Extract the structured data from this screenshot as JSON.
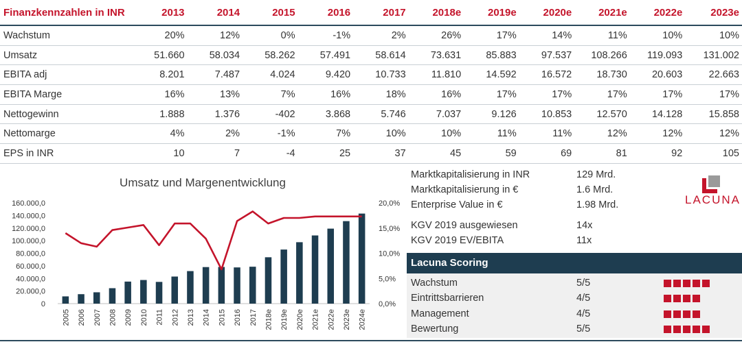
{
  "table": {
    "headers": [
      "Finanzkennzahlen in INR",
      "2013",
      "2014",
      "2015",
      "2016",
      "2017",
      "2018e",
      "2019e",
      "2020e",
      "2021e",
      "2022e",
      "2023e"
    ],
    "rows": [
      [
        "Wachstum",
        "20%",
        "12%",
        "0%",
        "-1%",
        "2%",
        "26%",
        "17%",
        "14%",
        "11%",
        "10%",
        "10%"
      ],
      [
        "Umsatz",
        "51.660",
        "58.034",
        "58.262",
        "57.491",
        "58.614",
        "73.631",
        "85.883",
        "97.537",
        "108.266",
        "119.093",
        "131.002"
      ],
      [
        "EBITA adj",
        "8.201",
        "7.487",
        "4.024",
        "9.420",
        "10.733",
        "11.810",
        "14.592",
        "16.572",
        "18.730",
        "20.603",
        "22.663"
      ],
      [
        "EBITA Marge",
        "16%",
        "13%",
        "7%",
        "16%",
        "18%",
        "16%",
        "17%",
        "17%",
        "17%",
        "17%",
        "17%"
      ],
      [
        "Nettogewinn",
        "1.888",
        "1.376",
        "-402",
        "3.868",
        "5.746",
        "7.037",
        "9.126",
        "10.853",
        "12.570",
        "14.128",
        "15.858"
      ],
      [
        "Nettomarge",
        "4%",
        "2%",
        "-1%",
        "7%",
        "10%",
        "10%",
        "11%",
        "11%",
        "12%",
        "12%",
        "12%"
      ],
      [
        "EPS in INR",
        "10",
        "7",
        "-4",
        "25",
        "37",
        "45",
        "59",
        "69",
        "81",
        "92",
        "105"
      ]
    ]
  },
  "chart_data": {
    "type": "bar",
    "title": "Umsatz und Margenentwicklung",
    "categories": [
      "2005",
      "2006",
      "2007",
      "2008",
      "2009",
      "2010",
      "2011",
      "2012",
      "2013",
      "2014",
      "2015",
      "2016",
      "2017",
      "2018e",
      "2019e",
      "2020e",
      "2021e",
      "2022e",
      "2023e",
      "2024e"
    ],
    "series": [
      {
        "type": "bar",
        "axis": "left",
        "color": "#1e3d50",
        "values": [
          11500,
          15000,
          18000,
          24500,
          35000,
          37500,
          34500,
          43000,
          51660,
          58034,
          58262,
          57491,
          58614,
          73631,
          85883,
          97537,
          108266,
          119093,
          131002,
          143000
        ]
      },
      {
        "type": "line",
        "axis": "right",
        "color": "#c4142b",
        "values": [
          14.0,
          12.0,
          11.3,
          14.6,
          15.1,
          15.6,
          11.6,
          15.9,
          15.9,
          12.9,
          6.8,
          16.4,
          18.3,
          15.9,
          17.0,
          17.0,
          17.3,
          17.3,
          17.3,
          17.3
        ]
      }
    ],
    "y_left": {
      "min": 0,
      "max": 160000,
      "ticks": [
        "0",
        "20.000,0",
        "40.000,0",
        "60.000,0",
        "80.000,0",
        "100.000,0",
        "120.000,0",
        "140.000,0",
        "160.000,0"
      ]
    },
    "y_right": {
      "min": 0,
      "max": 20,
      "ticks": [
        "0,0%",
        "5,0%",
        "10,0%",
        "15,0%",
        "20,0%"
      ]
    },
    "grid": false,
    "legend": "none"
  },
  "info": [
    {
      "label": "Marktkapitalisierung in INR",
      "value": "129 Mrd."
    },
    {
      "label": "Marktkapitalisierung in €",
      "value": "1.6 Mrd."
    },
    {
      "label": "Enterprise Value in €",
      "value": "1.98 Mrd."
    },
    {
      "label": "KGV 2019 ausgewiesen",
      "value": "14x"
    },
    {
      "label": "KGV 2019 EV/EBITA",
      "value": "11x"
    }
  ],
  "logo": {
    "text": "LACUNA",
    "icon": "lacuna-logo-icon",
    "color": "#c4142b"
  },
  "scoring": {
    "title": "Lacuna Scoring",
    "items": [
      {
        "label": "Wachstum",
        "value": "5/5",
        "score": 5
      },
      {
        "label": "Eintrittsbarrieren",
        "value": "4/5",
        "score": 4
      },
      {
        "label": "Management",
        "value": "4/5",
        "score": 4
      },
      {
        "label": "Bewertung",
        "value": "5/5",
        "score": 5
      }
    ]
  }
}
